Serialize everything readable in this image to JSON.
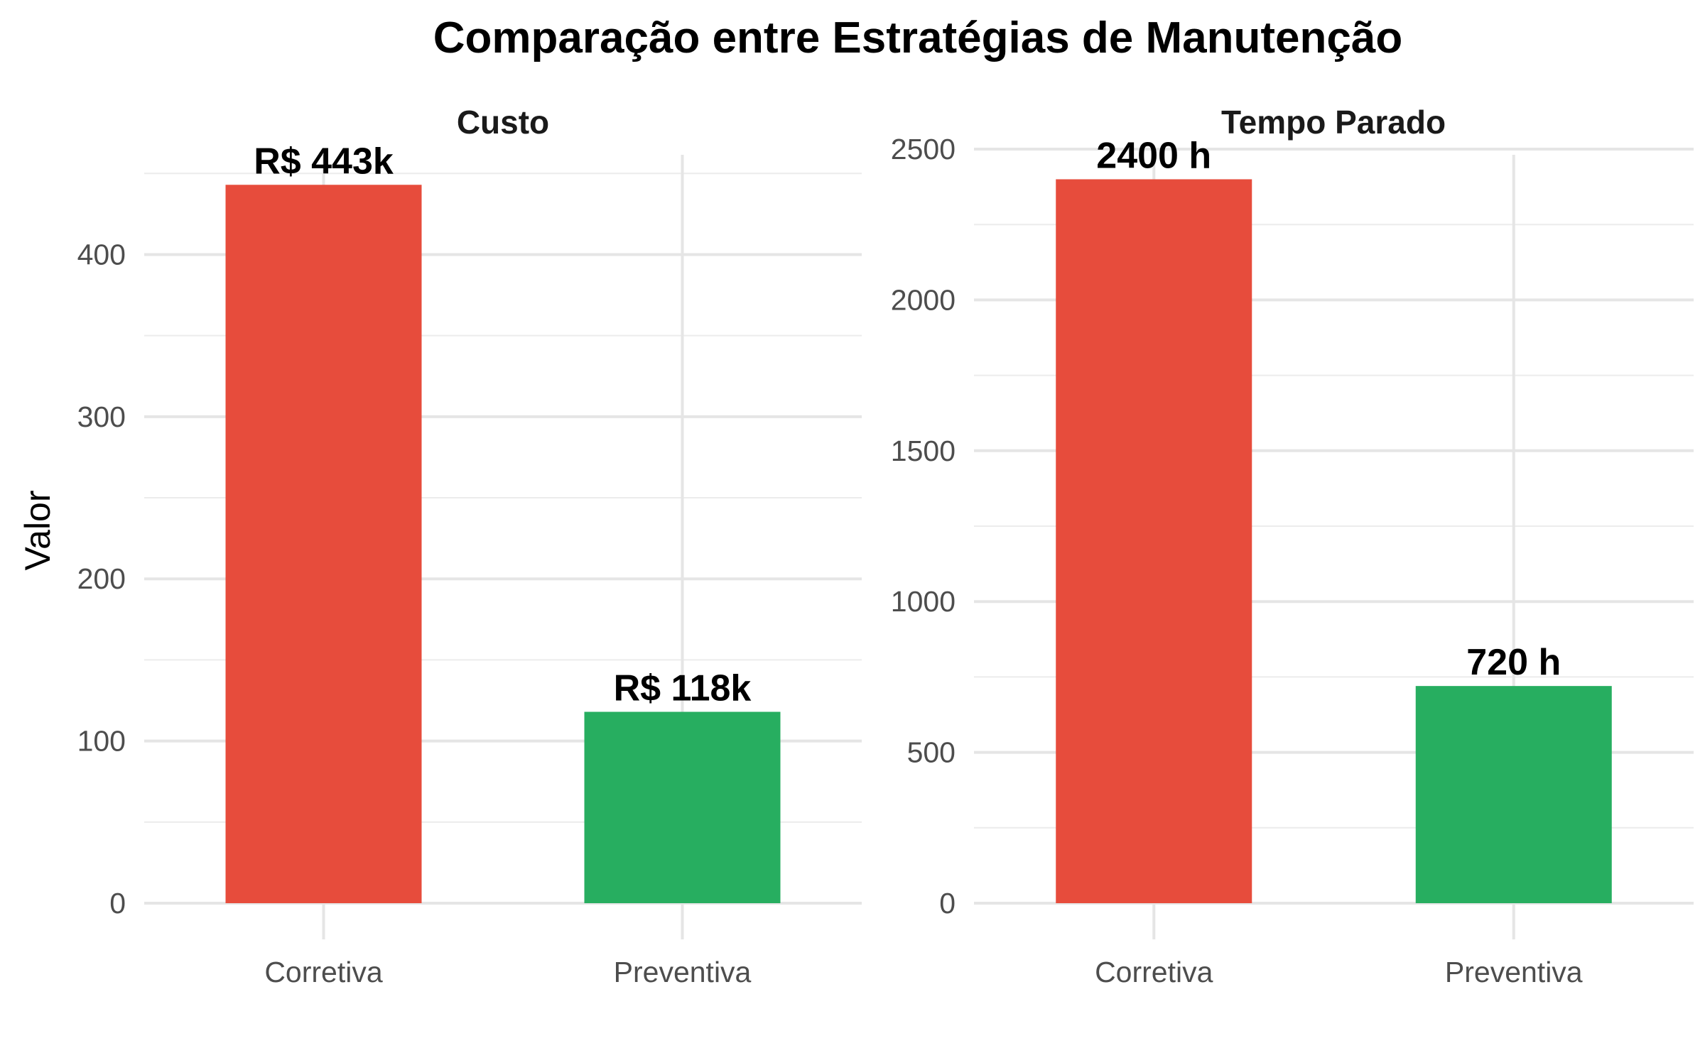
{
  "chart_data": {
    "type": "bar",
    "title": "Comparação entre Estratégias de Manutenção",
    "ylabel": "Valor",
    "xlabel": "",
    "grid": true,
    "legend": "none",
    "facets": [
      {
        "name": "Custo",
        "categories": [
          "Corretiva",
          "Preventiva"
        ],
        "values": [
          443,
          118
        ],
        "labels": [
          "R$ 443k",
          "R$ 118k"
        ],
        "colors": [
          "#e74c3c",
          "#27ae60"
        ],
        "ylim": [
          0,
          451
        ],
        "yticks": [
          0,
          100,
          200,
          300,
          400
        ]
      },
      {
        "name": "Tempo Parado",
        "categories": [
          "Corretiva",
          "Preventiva"
        ],
        "values": [
          2400,
          720
        ],
        "labels": [
          "2400 h",
          "720 h"
        ],
        "colors": [
          "#e74c3c",
          "#27ae60"
        ],
        "ylim": [
          0,
          2500
        ],
        "yticks": [
          0,
          500,
          1000,
          1500,
          2000,
          2500
        ]
      }
    ]
  }
}
